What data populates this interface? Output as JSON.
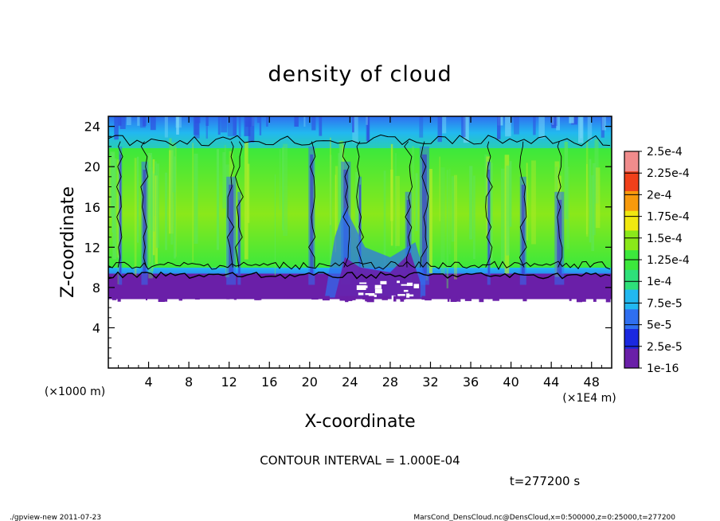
{
  "chart_data": {
    "type": "heatmap",
    "title": "density of cloud",
    "xlabel": "X-coordinate",
    "ylabel": "Z-coordinate",
    "x_unit_label": "(×1E4 m)",
    "y_unit_label": "(×1000 m)",
    "xlim": [
      0,
      50
    ],
    "ylim": [
      0,
      25
    ],
    "x_ticks": [
      "4",
      "8",
      "12",
      "16",
      "20",
      "24",
      "28",
      "32",
      "36",
      "40",
      "44",
      "48"
    ],
    "x_tick_values": [
      4,
      8,
      12,
      16,
      20,
      24,
      28,
      32,
      36,
      40,
      44,
      48
    ],
    "y_ticks": [
      "4",
      "8",
      "12",
      "16",
      "20",
      "24"
    ],
    "y_tick_values": [
      4,
      8,
      12,
      16,
      20,
      24
    ],
    "colorbar": {
      "labels": [
        "1e-16",
        "2.5e-5",
        "5e-5",
        "7.5e-5",
        "1e-4",
        "1.25e-4",
        "1.5e-4",
        "1.75e-4",
        "2e-4",
        "2.25e-4",
        "2.5e-4"
      ],
      "colors": [
        "#6a1fa8",
        "#1a28e0",
        "#2f6ff0",
        "#22b8f0",
        "#2ee07a",
        "#3ce83c",
        "#8ae81a",
        "#f0e810",
        "#f79a0c",
        "#f0401a",
        "#f08c8c"
      ]
    },
    "cloud_base_z": 7.0,
    "cloud_top_z": 23.5,
    "grid": false,
    "legend_position": "right",
    "contour_interval_text": "CONTOUR INTERVAL = 1.000E-04",
    "time_text": "t=277200 s"
  },
  "footer": {
    "left": "./gpview-new  2011-07-23",
    "right": "MarsCond_DensCloud.nc@DensCloud,x=0:500000,z=0:25000,t=277200"
  }
}
